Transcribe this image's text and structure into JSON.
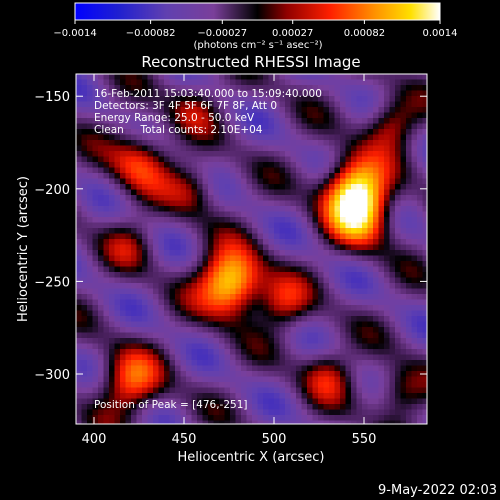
{
  "chart_data": {
    "type": "heatmap",
    "title": "Reconstructed RHESSI Image",
    "xlabel": "Heliocentric X (arcsec)",
    "ylabel": "Heliocentric Y (arcsec)",
    "xlim": [
      390,
      585
    ],
    "ylim": [
      -327,
      -138
    ],
    "x_ticks": [
      400,
      450,
      500,
      550
    ],
    "y_ticks": [
      -150,
      -200,
      -250,
      -300
    ],
    "colorbar": {
      "label": "(photons cm⁻² s⁻¹ asec⁻²)",
      "range": [
        -0.0014,
        0.0014
      ],
      "tick_values": [
        -0.0014,
        -0.00082,
        -0.00027,
        0.00027,
        0.00082,
        0.0014
      ],
      "tick_labels": [
        "−0.0014",
        "−0.00082",
        "−0.00027",
        "0.00027",
        "0.00082",
        "0.0014"
      ]
    },
    "annotations": {
      "time": "16-Feb-2011 15:03:40.000 to 15:09:40.000",
      "detectors": "Detectors: 3F 4F 5F 6F 7F 8F, Att 0",
      "energy": "Energy Range: 25.0 - 50.0 keV",
      "method": "Clean     Total counts: 2.10E+04",
      "peak": "Position of Peak = [476,-251]"
    },
    "sources": [
      {
        "x": 476,
        "y": -251,
        "value": 0.0014
      },
      {
        "x": 545,
        "y": -200,
        "value": 0.0012
      },
      {
        "x": 548,
        "y": -215,
        "value": 0.0009
      },
      {
        "x": 420,
        "y": -305,
        "value": 0.0008
      },
      {
        "x": 425,
        "y": -185,
        "value": 0.0007
      }
    ],
    "grid": false
  },
  "footer_date": "9-May-2022 02:03",
  "colors": {
    "background": "#000000",
    "foreground": "#ffffff",
    "colormap": [
      "#0000ff",
      "#4040c0",
      "#7a3f9a",
      "#5a2c80",
      "#000000",
      "#b00000",
      "#ff3000",
      "#ff9a00",
      "#ffe000",
      "#ffffff"
    ]
  }
}
